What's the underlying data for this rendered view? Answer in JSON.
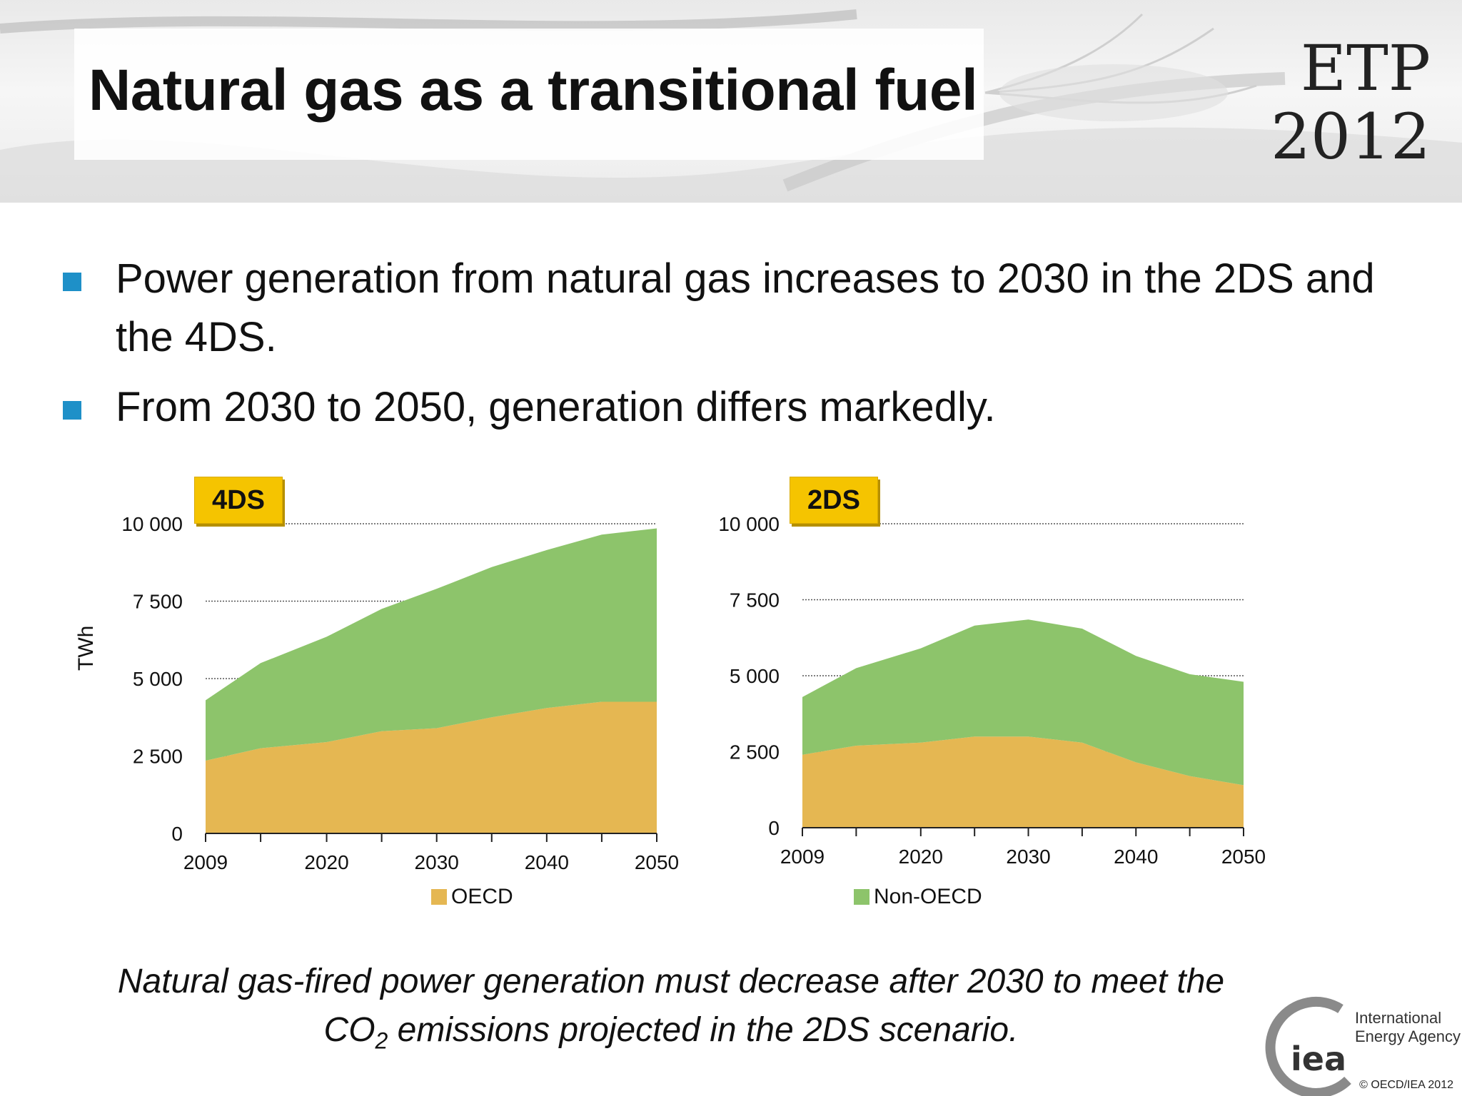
{
  "slide": {
    "title": "Natural gas as a transitional fuel",
    "logo_line1": "ETP",
    "logo_line2": "2012",
    "bullets": [
      "Power generation from natural gas increases to 2030 in the 2DS and the 4DS.",
      "From 2030 to 2050, generation differs markedly."
    ],
    "footnote_part1": "Natural gas-fired power generation must decrease after 2030 to meet the CO",
    "footnote_sub": "2",
    "footnote_part2": " emissions projected in the 2DS scenario.",
    "iea_logo_text": "iea",
    "iea_name_line1": "International",
    "iea_name_line2": "Energy Agency",
    "copyright": "© OECD/IEA 2012",
    "colors": {
      "oecd": "#e5b752",
      "non_oecd": "#8dc46b",
      "tag": "#f5c400",
      "bullet": "#1e90c8"
    }
  },
  "chart_data": [
    {
      "type": "area",
      "stacked": true,
      "tag": "4DS",
      "ylabel": "TWh",
      "ylim": [
        0,
        10000
      ],
      "yticks": [
        0,
        2500,
        5000,
        7500,
        10000
      ],
      "ytick_labels": [
        "0",
        "2 500",
        "5 000",
        "7 500",
        "10 000"
      ],
      "xticks": [
        2009,
        2020,
        2030,
        2040,
        2050
      ],
      "x": [
        2009,
        2014,
        2020,
        2025,
        2030,
        2035,
        2040,
        2045,
        2050
      ],
      "grid": true,
      "series": [
        {
          "name": "OECD",
          "values": [
            2350,
            2750,
            2950,
            3300,
            3400,
            3750,
            4050,
            4250,
            4250
          ]
        },
        {
          "name": "Non-OECD",
          "values": [
            1950,
            2750,
            3400,
            3950,
            4500,
            4850,
            5100,
            5400,
            5600
          ]
        }
      ]
    },
    {
      "type": "area",
      "stacked": true,
      "tag": "2DS",
      "ylabel": "",
      "ylim": [
        0,
        10000
      ],
      "yticks": [
        0,
        2500,
        5000,
        7500,
        10000
      ],
      "ytick_labels": [
        "0",
        "2 500",
        "5 000",
        "7 500",
        "10 000"
      ],
      "xticks": [
        2009,
        2020,
        2030,
        2040,
        2050
      ],
      "x": [
        2009,
        2014,
        2020,
        2025,
        2030,
        2035,
        2040,
        2045,
        2050
      ],
      "grid": true,
      "series": [
        {
          "name": "OECD",
          "values": [
            2400,
            2700,
            2800,
            3000,
            3000,
            2800,
            2150,
            1700,
            1400
          ]
        },
        {
          "name": "Non-OECD",
          "values": [
            1900,
            2550,
            3100,
            3650,
            3850,
            3750,
            3500,
            3350,
            3400
          ]
        }
      ]
    }
  ],
  "legend": [
    {
      "name": "OECD",
      "color": "#e5b752"
    },
    {
      "name": "Non-OECD",
      "color": "#8dc46b"
    }
  ]
}
